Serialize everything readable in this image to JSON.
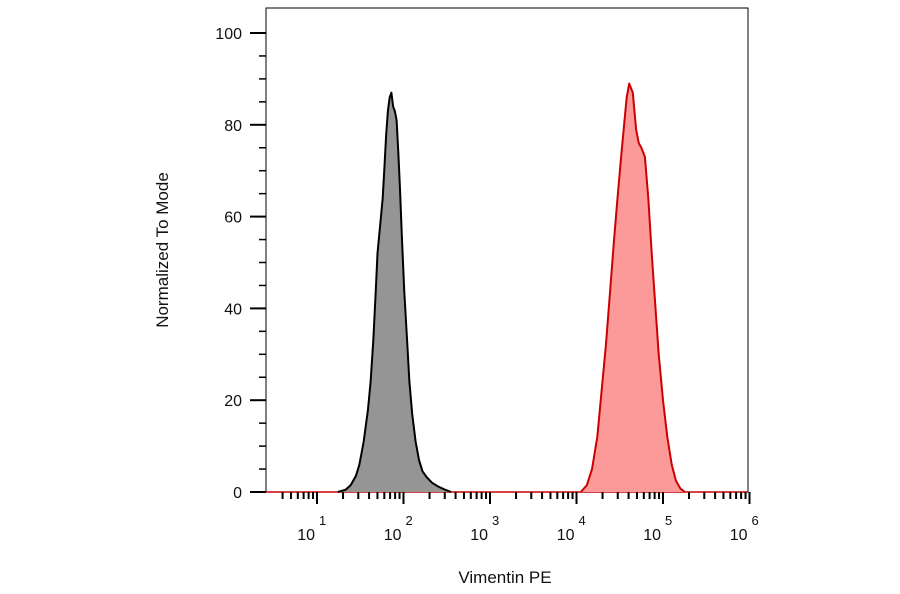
{
  "chart_data": {
    "type": "area",
    "xlabel": "Vimentin PE",
    "ylabel": "Normalized To Mode",
    "x_scale": "log",
    "x_range": [
      1,
      1000000
    ],
    "ylim": [
      0,
      100
    ],
    "y_ticks": [
      0,
      20,
      40,
      60,
      80,
      100
    ],
    "x_ticks": [
      {
        "base": "10",
        "exp": "1",
        "value": 10
      },
      {
        "base": "10",
        "exp": "2",
        "value": 100
      },
      {
        "base": "10",
        "exp": "3",
        "value": 1000
      },
      {
        "base": "10",
        "exp": "4",
        "value": 10000
      },
      {
        "base": "10",
        "exp": "5",
        "value": 100000
      },
      {
        "base": "10",
        "exp": "6",
        "value": 1000000
      }
    ],
    "grid": false,
    "series": [
      {
        "color_fill": "#959595",
        "color_line": "#000000",
        "points": [
          [
            17.4,
            0
          ],
          [
            21.4,
            0.5
          ],
          [
            24.5,
            1.5
          ],
          [
            28.2,
            3.5
          ],
          [
            30.9,
            6
          ],
          [
            34.7,
            11
          ],
          [
            38.9,
            18
          ],
          [
            41.7,
            24
          ],
          [
            44.7,
            33
          ],
          [
            47.9,
            44
          ],
          [
            50.1,
            52
          ],
          [
            53.7,
            58
          ],
          [
            57.5,
            64
          ],
          [
            60.3,
            71
          ],
          [
            63.1,
            78
          ],
          [
            66.1,
            83
          ],
          [
            69.2,
            86
          ],
          [
            72.4,
            87
          ],
          [
            75.9,
            84
          ],
          [
            79.4,
            83
          ],
          [
            83.2,
            81
          ],
          [
            87.1,
            74
          ],
          [
            91.2,
            66
          ],
          [
            95.5,
            56
          ],
          [
            102,
            44
          ],
          [
            110,
            33
          ],
          [
            117,
            24
          ],
          [
            126,
            17
          ],
          [
            138,
            11
          ],
          [
            151,
            7
          ],
          [
            166,
            4.5
          ],
          [
            186,
            3.2
          ],
          [
            214,
            2
          ],
          [
            251,
            1.2
          ],
          [
            302,
            0.5
          ],
          [
            355,
            0
          ]
        ]
      },
      {
        "color_fill": "#fc9a9a",
        "color_line": "#cc0000",
        "points": [
          [
            11200,
            0
          ],
          [
            13200,
            1.5
          ],
          [
            15100,
            5
          ],
          [
            17400,
            12
          ],
          [
            19500,
            22
          ],
          [
            21900,
            32
          ],
          [
            24500,
            44
          ],
          [
            26900,
            54
          ],
          [
            29500,
            63
          ],
          [
            32400,
            72
          ],
          [
            35500,
            80
          ],
          [
            38000,
            86
          ],
          [
            40700,
            89
          ],
          [
            44700,
            87
          ],
          [
            48900,
            79
          ],
          [
            52500,
            76
          ],
          [
            56200,
            75
          ],
          [
            61700,
            73
          ],
          [
            67600,
            64
          ],
          [
            74100,
            52
          ],
          [
            81300,
            41
          ],
          [
            89100,
            30
          ],
          [
            100000,
            20
          ],
          [
            112000,
            12
          ],
          [
            126000,
            6
          ],
          [
            141000,
            2.5
          ],
          [
            158000,
            0.8
          ],
          [
            178000,
            0
          ]
        ]
      }
    ]
  }
}
